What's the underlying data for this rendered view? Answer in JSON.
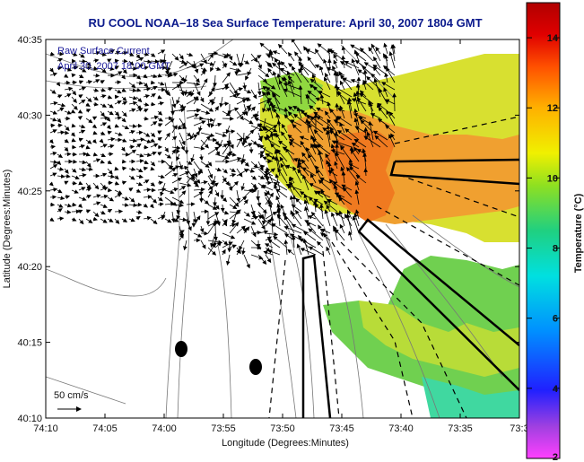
{
  "title": "RU COOL  NOAA–18  Sea Surface Temperature:  April 30, 2007 1804 GMT",
  "map_legend": {
    "line1": "Raw Surface Current",
    "line2": "April 30, 2007 18:00 GMT",
    "scale_label": "50 cm/s"
  },
  "axes": {
    "xlabel": "Longitude (Degrees:Minutes)",
    "ylabel": "Latitude (Degrees:Minutes)",
    "xticks": [
      "74:10",
      "74:05",
      "74:00",
      "73:55",
      "73:50",
      "73:45",
      "73:40",
      "73:35",
      "73:3"
    ],
    "yticks": [
      "40:35",
      "40:30",
      "40:25",
      "40:20",
      "40:15",
      "40:10"
    ]
  },
  "colorbar": {
    "label": "Temperature (°C)",
    "ticks": [
      "14",
      "12",
      "10",
      "8",
      "6",
      "4",
      "2"
    ],
    "range": [
      2,
      15
    ],
    "colors": [
      "#ff40ff",
      "#8a2be2",
      "#1010ff",
      "#00a0ff",
      "#00e0e0",
      "#20d080",
      "#80e020",
      "#f0f000",
      "#ffb000",
      "#ff5000",
      "#e00000",
      "#b00000"
    ]
  },
  "colors": {
    "sst_warm": "#f08c20",
    "sst_mid": "#e8c040",
    "sst_yellow": "#c8e030",
    "sst_green": "#80d840",
    "title_blue": "#0b1a8c"
  }
}
